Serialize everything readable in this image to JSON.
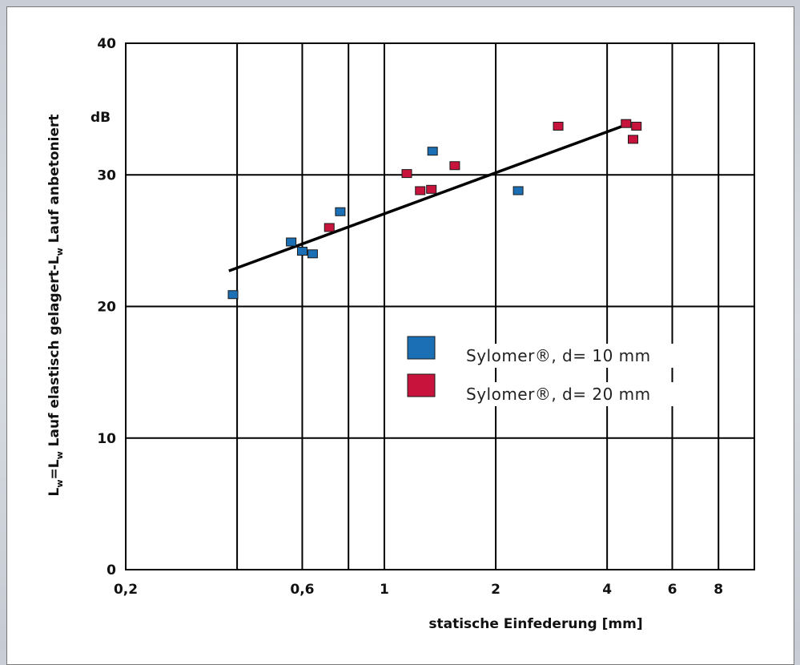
{
  "chart_data": {
    "type": "scatter",
    "x_scale": "log",
    "xlim": [
      0.2,
      10
    ],
    "ylim": [
      0,
      40
    ],
    "xlabel": "statische Einfederung [mm]",
    "ylabel_parts": [
      "L",
      "w",
      "=L",
      "w",
      " Lauf elastisch gelagert-L",
      "w",
      " Lauf anbetoniert"
    ],
    "yunit": "dB",
    "grid": true,
    "x_ticks": [
      {
        "value": 0.2,
        "label": "0,2"
      },
      {
        "value": 0.6,
        "label": "0,6"
      },
      {
        "value": 1,
        "label": "1"
      },
      {
        "value": 2,
        "label": "2"
      },
      {
        "value": 4,
        "label": "4"
      },
      {
        "value": 6,
        "label": "6"
      },
      {
        "value": 8,
        "label": "8"
      }
    ],
    "x_gridlines": [
      0.4,
      0.6,
      0.8,
      1,
      2,
      4,
      6,
      8
    ],
    "y_ticks": [
      {
        "value": 0,
        "label": "0"
      },
      {
        "value": 10,
        "label": "10"
      },
      {
        "value": 20,
        "label": "20"
      },
      {
        "value": 30,
        "label": "30"
      },
      {
        "value": 40,
        "label": "40"
      }
    ],
    "legend_position": "center-right",
    "series": [
      {
        "name": "Sylomer®, d= 10 mm",
        "color": "#1a6fb5",
        "points": [
          {
            "x": 0.39,
            "y": 20.9
          },
          {
            "x": 0.56,
            "y": 24.9
          },
          {
            "x": 0.6,
            "y": 24.2
          },
          {
            "x": 0.64,
            "y": 24.0
          },
          {
            "x": 0.76,
            "y": 27.2
          },
          {
            "x": 1.35,
            "y": 31.8
          },
          {
            "x": 2.3,
            "y": 28.8
          }
        ]
      },
      {
        "name": "Sylomer®, d= 20 mm",
        "color": "#c8143c",
        "points": [
          {
            "x": 0.71,
            "y": 26.0
          },
          {
            "x": 1.15,
            "y": 30.1
          },
          {
            "x": 1.25,
            "y": 28.8
          },
          {
            "x": 1.34,
            "y": 28.9
          },
          {
            "x": 1.55,
            "y": 30.7
          },
          {
            "x": 2.95,
            "y": 33.7
          },
          {
            "x": 4.5,
            "y": 33.9
          },
          {
            "x": 4.7,
            "y": 32.7
          },
          {
            "x": 4.8,
            "y": 33.7
          }
        ]
      }
    ],
    "trend_line": {
      "x": [
        0.38,
        4.4
      ],
      "y": [
        22.7,
        33.7
      ]
    }
  }
}
